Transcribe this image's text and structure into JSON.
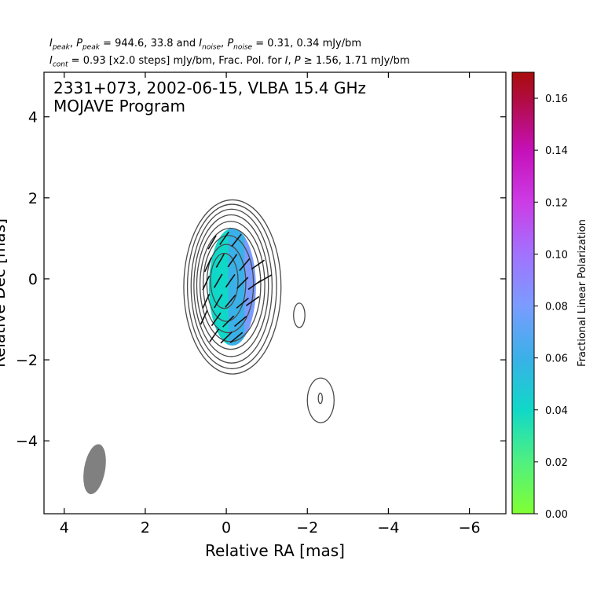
{
  "header": {
    "line1": {
      "i_peak_symbol": "I",
      "i_peak_sub": "peak",
      "p_peak_symbol": "P",
      "p_peak_sub": "peak",
      "peak_values": "944.6, 33.8",
      "i_noise_symbol": "I",
      "i_noise_sub": "noise",
      "p_noise_symbol": "P",
      "p_noise_sub": "noise",
      "noise_values": "0.31, 0.34",
      "unit": "mJy/bm"
    },
    "line2": {
      "i_cont_symbol": "I",
      "i_cont_sub": "cont",
      "cont_value": "0.93 [x2.0 steps] mJy/bm, Frac. Pol. for",
      "frac_I": "I",
      "frac_P": "P",
      "geq": "≥",
      "frac_values": "1.56, 1.71 mJy/bm"
    }
  },
  "chart_data": {
    "type": "contour",
    "annotation": [
      "2331+073, 2002-06-15, VLBA 15.4 GHz",
      "MOJAVE Program"
    ],
    "xlabel": "Relative RA [mas]",
    "ylabel": "Relative Dec [mas]",
    "xlim": [
      4.5,
      -6.9
    ],
    "ylim": [
      -5.8,
      5.1
    ],
    "xticks": [
      4,
      2,
      0,
      -2,
      -4,
      -6
    ],
    "xtick_labels": [
      "4",
      "2",
      "0",
      "−2",
      "−4",
      "−6"
    ],
    "yticks": [
      4,
      2,
      0,
      -2,
      -4
    ],
    "ytick_labels": [
      "4",
      "2",
      "0",
      "−2",
      "−4"
    ],
    "intensity_contours": {
      "base_mJy_per_beam": 0.93,
      "step_factor": 2.0,
      "rings": [
        {
          "cx": -0.15,
          "cy": -0.2,
          "rx": 1.2,
          "ry": 2.15
        },
        {
          "cx": -0.14,
          "cy": -0.19,
          "rx": 1.1,
          "ry": 2.03
        },
        {
          "cx": -0.13,
          "cy": -0.18,
          "rx": 1.0,
          "ry": 1.9
        },
        {
          "cx": -0.12,
          "cy": -0.17,
          "rx": 0.92,
          "ry": 1.75
        },
        {
          "cx": -0.11,
          "cy": -0.16,
          "rx": 0.84,
          "ry": 1.58
        },
        {
          "cx": -0.1,
          "cy": -0.15,
          "rx": 0.75,
          "ry": 1.4
        },
        {
          "cx": -0.05,
          "cy": -0.13,
          "rx": 0.62,
          "ry": 1.2
        },
        {
          "cx": 0.0,
          "cy": -0.1,
          "rx": 0.48,
          "ry": 0.95
        },
        {
          "cx": 0.05,
          "cy": -0.05,
          "rx": 0.34,
          "ry": 0.68
        }
      ],
      "isolated_contours": [
        {
          "cx": -1.8,
          "cy": -0.9,
          "rx": 0.14,
          "ry": 0.3
        },
        {
          "cx": -2.33,
          "cy": -3.0,
          "rx": 0.33,
          "ry": 0.55
        },
        {
          "cx": -2.32,
          "cy": -2.95,
          "rx": 0.05,
          "ry": 0.13
        }
      ]
    },
    "fractional_polarization": {
      "colorbar_label": "Fractional Linear Polarization",
      "range": [
        0.0,
        0.17
      ],
      "ticks": [
        0.0,
        0.02,
        0.04,
        0.06,
        0.08,
        0.1,
        0.12,
        0.14,
        0.16
      ],
      "tick_labels": [
        "0.00",
        "0.02",
        "0.04",
        "0.06",
        "0.08",
        "0.10",
        "0.12",
        "0.14",
        "0.16"
      ],
      "colors": {
        "0.00": "#80ff33",
        "0.02": "#50f080",
        "0.04": "#10d8c8",
        "0.06": "#3ab0e8",
        "0.08": "#7a9cff",
        "0.10": "#a272ff",
        "0.12": "#cc3ce6",
        "0.14": "#c610b8",
        "0.16": "#b00c3e",
        "0.17": "#a80c0c"
      },
      "region": {
        "cx": -0.15,
        "cy": -0.2,
        "rx": 0.58,
        "ry": 1.45
      },
      "zones": [
        {
          "ra_from": 0.75,
          "ra_to": -0.05,
          "value": 0.035
        },
        {
          "ra_from": -0.05,
          "ra_to": -0.45,
          "value": 0.05
        },
        {
          "ra_from": -0.45,
          "ra_to": -0.75,
          "value": 0.07
        },
        {
          "ra_from": -0.75,
          "ra_to": -1.05,
          "value": 0.1
        }
      ]
    },
    "evpa_ticks": [
      {
        "x": 0.35,
        "y": 0.9,
        "angle": -30
      },
      {
        "x": 0.05,
        "y": 1.0,
        "angle": -35
      },
      {
        "x": -0.25,
        "y": 0.95,
        "angle": -38
      },
      {
        "x": 0.45,
        "y": 0.35,
        "angle": -25
      },
      {
        "x": 0.15,
        "y": 0.45,
        "angle": -30
      },
      {
        "x": -0.15,
        "y": 0.45,
        "angle": -35
      },
      {
        "x": -0.45,
        "y": 0.35,
        "angle": -40
      },
      {
        "x": -0.78,
        "y": 0.35,
        "angle": -55
      },
      {
        "x": -0.95,
        "y": 0.0,
        "angle": -60
      },
      {
        "x": 0.5,
        "y": -0.1,
        "angle": -25
      },
      {
        "x": 0.2,
        "y": -0.05,
        "angle": -30
      },
      {
        "x": -0.1,
        "y": -0.05,
        "angle": -35
      },
      {
        "x": -0.4,
        "y": -0.1,
        "angle": -45
      },
      {
        "x": -0.7,
        "y": -0.15,
        "angle": -55
      },
      {
        "x": 0.5,
        "y": -0.55,
        "angle": -25
      },
      {
        "x": 0.2,
        "y": -0.55,
        "angle": -30
      },
      {
        "x": -0.1,
        "y": -0.55,
        "angle": -40
      },
      {
        "x": -0.4,
        "y": -0.6,
        "angle": -50
      },
      {
        "x": -0.65,
        "y": -0.55,
        "angle": -55
      },
      {
        "x": 0.55,
        "y": -0.95,
        "angle": -25
      },
      {
        "x": 0.25,
        "y": -1.0,
        "angle": -35
      },
      {
        "x": -0.05,
        "y": -1.05,
        "angle": -45
      },
      {
        "x": -0.35,
        "y": -1.05,
        "angle": -50
      },
      {
        "x": 0.3,
        "y": -1.4,
        "angle": -35
      },
      {
        "x": 0.0,
        "y": -1.45,
        "angle": -45
      },
      {
        "x": -0.25,
        "y": -1.45,
        "angle": -50
      }
    ],
    "beam": {
      "x": 3.25,
      "y": -4.7,
      "major": 1.25,
      "minor": 0.52,
      "pa_deg": 10,
      "color": "#808080"
    }
  }
}
